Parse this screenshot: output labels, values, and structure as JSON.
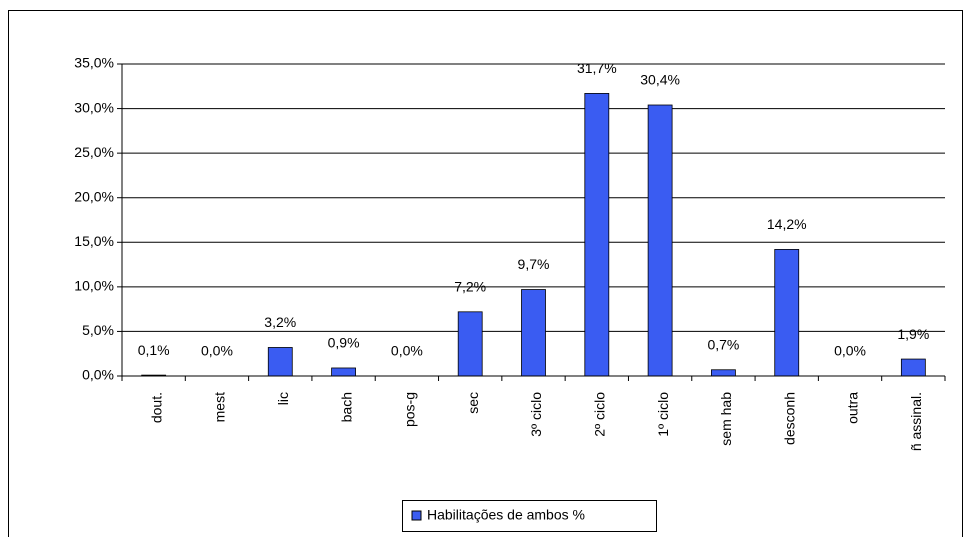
{
  "chart_data": {
    "type": "bar",
    "categories": [
      "dout.",
      "mest",
      "lic",
      "bach",
      "pos-g",
      "sec",
      "3º ciclo",
      "2º ciclo",
      "1º ciclo",
      "sem hab",
      "desconh",
      "outra",
      "ñ assinal."
    ],
    "series": [
      {
        "name": "Habilitações de ambos  %",
        "color": "#3a5cf2",
        "values": [
          0.1,
          0.0,
          3.2,
          0.9,
          0.0,
          7.2,
          9.7,
          31.7,
          30.4,
          0.7,
          14.2,
          0.0,
          1.9
        ],
        "value_labels": [
          "0,1%",
          "0,0%",
          "3,2%",
          "0,9%",
          "0,0%",
          "7,2%",
          "9,7%",
          "31,7%",
          "30,4%",
          "0,7%",
          "14,2%",
          "0,0%",
          "1,9%"
        ]
      }
    ],
    "ylim": [
      0,
      35
    ],
    "yticks": [
      {
        "value": 0,
        "label": "0,0%"
      },
      {
        "value": 5,
        "label": "5,0%"
      },
      {
        "value": 10,
        "label": "10,0%"
      },
      {
        "value": 15,
        "label": "15,0%"
      },
      {
        "value": 20,
        "label": "20,0%"
      },
      {
        "value": 25,
        "label": "25,0%"
      },
      {
        "value": 30,
        "label": "30,0%"
      },
      {
        "value": 35,
        "label": "35,0%"
      }
    ],
    "grid": true,
    "legend": "bottom"
  }
}
